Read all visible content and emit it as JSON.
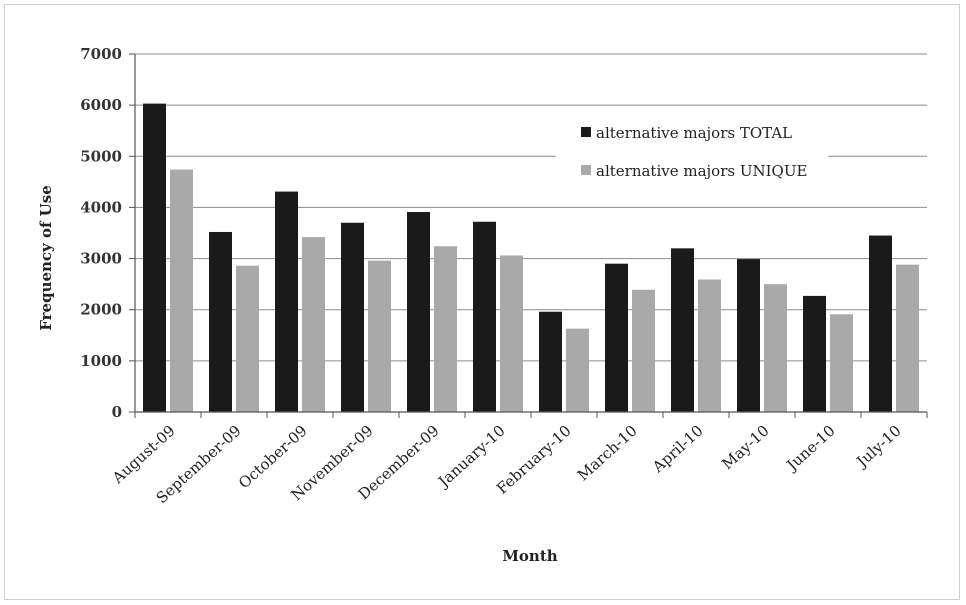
{
  "chart_data": {
    "type": "bar",
    "title": "",
    "xlabel": "Month",
    "ylabel": "Frequency of Use",
    "ylim": [
      0,
      7000
    ],
    "yticks": [
      0,
      1000,
      2000,
      3000,
      4000,
      5000,
      6000,
      7000
    ],
    "grid": true,
    "legend_position": "top-right",
    "categories": [
      "August-09",
      "September-09",
      "October-09",
      "November-09",
      "December-09",
      "January-10",
      "February-10",
      "March-10",
      "April-10",
      "May-10",
      "June-10",
      "July-10"
    ],
    "series": [
      {
        "name": "alternative majors TOTAL",
        "color": "#1a1a1a",
        "values": [
          6030,
          3520,
          4310,
          3700,
          3910,
          3720,
          1960,
          2900,
          3200,
          2990,
          2270,
          3450
        ]
      },
      {
        "name": "alternative majors UNIQUE",
        "color": "#a9a9a9",
        "values": [
          4740,
          2860,
          3420,
          2960,
          3240,
          3060,
          1630,
          2390,
          2590,
          2500,
          1910,
          2880
        ]
      }
    ]
  }
}
